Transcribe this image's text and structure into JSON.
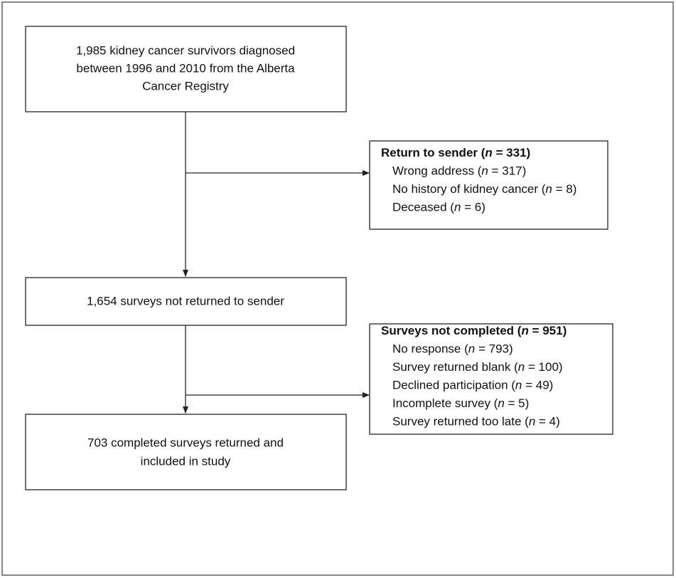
{
  "nodes": [
    {
      "lines": [
        "1,985 kidney cancer survivors diagnosed",
        "between 1996 and 2010 from the Alberta",
        "Cancer Registry"
      ]
    },
    {
      "lines": [
        "1,654 surveys not returned to sender"
      ]
    },
    {
      "lines": [
        "703 completed surveys returned and",
        "included in study"
      ]
    }
  ],
  "exclusions": [
    {
      "title": [
        "Return to sender (",
        "n",
        " = 331)"
      ],
      "items": [
        [
          "Wrong address (",
          "n",
          " = 317)"
        ],
        [
          "No history of kidney cancer (",
          "n",
          " = 8)"
        ],
        [
          "Deceased (",
          "n",
          " = 6)"
        ]
      ]
    },
    {
      "title": [
        "Surveys not completed (",
        "n",
        " = 951)"
      ],
      "items": [
        [
          "No response (",
          "n",
          " = 793)"
        ],
        [
          "Survey returned blank (",
          "n",
          " = 100)"
        ],
        [
          "Declined participation (",
          "n",
          " = 49)"
        ],
        [
          "Incomplete survey (",
          "n",
          " = 5)"
        ],
        [
          "Survey returned too late (",
          "n",
          " = 4)"
        ]
      ]
    }
  ]
}
